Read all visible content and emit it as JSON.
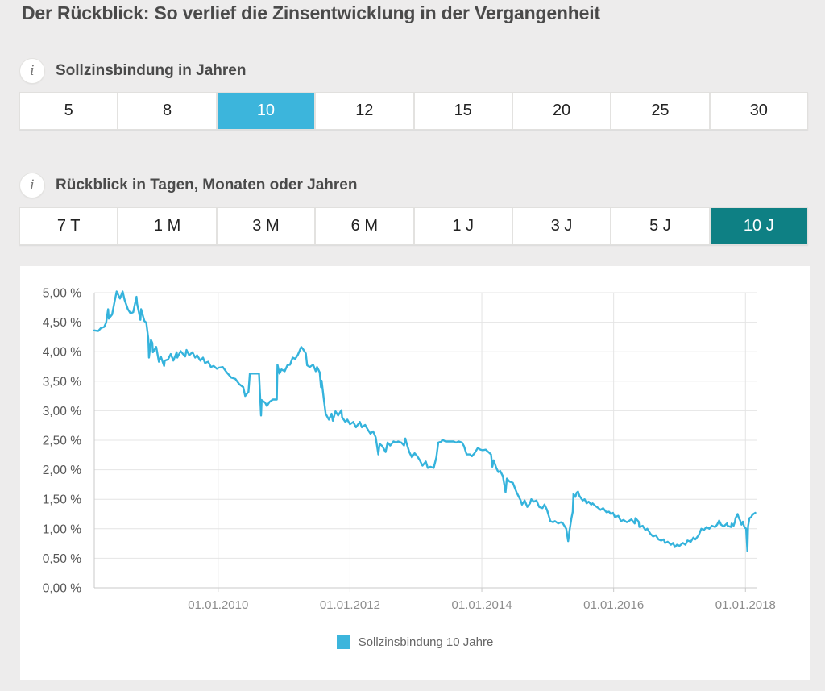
{
  "page": {
    "title": "Der Rückblick: So verlief die Zinsentwicklung in der Vergangenheit"
  },
  "icons": {
    "info": "i"
  },
  "colors": {
    "background": "#edecec",
    "panel": "#ffffff",
    "accent_blue": "#3cb5dc",
    "accent_teal": "#0e8084",
    "line": "#35b3dc",
    "grid": "#e4e4e4",
    "axis": "#c9c9c9",
    "text_dark": "#4a4a4a",
    "y_label": "#575757",
    "x_label": "#8c8c8c"
  },
  "sections": [
    {
      "id": "binding",
      "label": "Sollzinsbindung in Jahren",
      "options": [
        "5",
        "8",
        "10",
        "12",
        "15",
        "20",
        "25",
        "30"
      ],
      "selected": "10",
      "selected_color": "#3cb5dc"
    },
    {
      "id": "lookback",
      "label": "Rückblick in Tagen, Monaten oder Jahren",
      "options": [
        "7 T",
        "1 M",
        "3 M",
        "6 M",
        "1 J",
        "3 J",
        "5 J",
        "10 J"
      ],
      "selected": "10 J",
      "selected_color": "#0e8084"
    }
  ],
  "chart_data": {
    "type": "line",
    "xlim": [
      2008.12,
      2018.18
    ],
    "ylim": [
      0,
      5
    ],
    "grid": true,
    "legend": {
      "label": "Sollzinsbindung 10 Jahre",
      "position": "bottom-center",
      "swatch_color": "#3cb5dc"
    },
    "x_ticks": [
      {
        "t": 2010,
        "label": "01.01.2010"
      },
      {
        "t": 2012,
        "label": "01.01.2012"
      },
      {
        "t": 2014,
        "label": "01.01.2014"
      },
      {
        "t": 2016,
        "label": "01.01.2016"
      },
      {
        "t": 2018,
        "label": "01.01.2018"
      }
    ],
    "y_ticks": [
      {
        "v": 0,
        "label": "0,00 %"
      },
      {
        "v": 0.5,
        "label": "0,50 %"
      },
      {
        "v": 1,
        "label": "1,00 %"
      },
      {
        "v": 1.5,
        "label": "1,50 %"
      },
      {
        "v": 2,
        "label": "2,00 %"
      },
      {
        "v": 2.5,
        "label": "2,50 %"
      },
      {
        "v": 3,
        "label": "3,00 %"
      },
      {
        "v": 3.5,
        "label": "3,50 %"
      },
      {
        "v": 4,
        "label": "4,00 %"
      },
      {
        "v": 4.5,
        "label": "4,50 %"
      },
      {
        "v": 5,
        "label": "5,00 %"
      }
    ],
    "series": [
      {
        "name": "Sollzinsbindung 10 Jahre",
        "color": "#35b3dc",
        "points": [
          [
            2008.12,
            4.36
          ],
          [
            2008.18,
            4.35
          ],
          [
            2008.22,
            4.4
          ],
          [
            2008.27,
            4.42
          ],
          [
            2008.3,
            4.49
          ],
          [
            2008.33,
            4.72
          ],
          [
            2008.34,
            4.56
          ],
          [
            2008.39,
            4.63
          ],
          [
            2008.43,
            4.86
          ],
          [
            2008.46,
            5.02
          ],
          [
            2008.51,
            4.9
          ],
          [
            2008.55,
            5.02
          ],
          [
            2008.58,
            4.88
          ],
          [
            2008.63,
            4.72
          ],
          [
            2008.67,
            4.65
          ],
          [
            2008.71,
            4.67
          ],
          [
            2008.76,
            4.93
          ],
          [
            2008.77,
            4.81
          ],
          [
            2008.82,
            4.54
          ],
          [
            2008.83,
            4.72
          ],
          [
            2008.88,
            4.52
          ],
          [
            2008.91,
            4.49
          ],
          [
            2008.94,
            4.22
          ],
          [
            2008.95,
            3.9
          ],
          [
            2008.98,
            4.2
          ],
          [
            2009.0,
            4.15
          ],
          [
            2009.01,
            3.99
          ],
          [
            2009.06,
            4.08
          ],
          [
            2009.1,
            3.83
          ],
          [
            2009.13,
            3.92
          ],
          [
            2009.18,
            3.76
          ],
          [
            2009.19,
            3.85
          ],
          [
            2009.24,
            3.87
          ],
          [
            2009.28,
            3.96
          ],
          [
            2009.32,
            3.85
          ],
          [
            2009.37,
            3.99
          ],
          [
            2009.38,
            3.9
          ],
          [
            2009.43,
            4.01
          ],
          [
            2009.46,
            3.97
          ],
          [
            2009.5,
            3.92
          ],
          [
            2009.52,
            4.03
          ],
          [
            2009.56,
            3.94
          ],
          [
            2009.61,
            3.99
          ],
          [
            2009.65,
            3.9
          ],
          [
            2009.68,
            3.94
          ],
          [
            2009.73,
            3.85
          ],
          [
            2009.77,
            3.9
          ],
          [
            2009.8,
            3.81
          ],
          [
            2009.85,
            3.83
          ],
          [
            2009.89,
            3.74
          ],
          [
            2009.93,
            3.76
          ],
          [
            2009.98,
            3.71
          ],
          [
            2010.01,
            3.73
          ],
          [
            2010.07,
            3.74
          ],
          [
            2010.13,
            3.65
          ],
          [
            2010.2,
            3.56
          ],
          [
            2010.26,
            3.54
          ],
          [
            2010.32,
            3.45
          ],
          [
            2010.38,
            3.4
          ],
          [
            2010.41,
            3.25
          ],
          [
            2010.46,
            3.32
          ],
          [
            2010.48,
            3.63
          ],
          [
            2010.6,
            3.63
          ],
          [
            2010.62,
            3.63
          ],
          [
            2010.65,
            2.92
          ],
          [
            2010.66,
            3.18
          ],
          [
            2010.71,
            3.14
          ],
          [
            2010.74,
            3.08
          ],
          [
            2010.78,
            3.15
          ],
          [
            2010.83,
            3.19
          ],
          [
            2010.89,
            3.19
          ],
          [
            2010.9,
            3.78
          ],
          [
            2010.93,
            3.63
          ],
          [
            2010.96,
            3.7
          ],
          [
            2011.01,
            3.67
          ],
          [
            2011.05,
            3.77
          ],
          [
            2011.09,
            3.78
          ],
          [
            2011.13,
            3.9
          ],
          [
            2011.17,
            3.88
          ],
          [
            2011.21,
            3.95
          ],
          [
            2011.26,
            4.08
          ],
          [
            2011.29,
            4.04
          ],
          [
            2011.33,
            3.97
          ],
          [
            2011.35,
            3.77
          ],
          [
            2011.39,
            3.74
          ],
          [
            2011.44,
            3.78
          ],
          [
            2011.48,
            3.67
          ],
          [
            2011.5,
            3.74
          ],
          [
            2011.54,
            3.65
          ],
          [
            2011.56,
            3.4
          ],
          [
            2011.57,
            3.51
          ],
          [
            2011.6,
            3.22
          ],
          [
            2011.63,
            2.95
          ],
          [
            2011.68,
            2.85
          ],
          [
            2011.72,
            2.95
          ],
          [
            2011.74,
            2.83
          ],
          [
            2011.78,
            2.99
          ],
          [
            2011.82,
            2.92
          ],
          [
            2011.87,
            3.01
          ],
          [
            2011.88,
            2.89
          ],
          [
            2011.93,
            2.81
          ],
          [
            2011.96,
            2.85
          ],
          [
            2012.0,
            2.77
          ],
          [
            2012.05,
            2.81
          ],
          [
            2012.09,
            2.72
          ],
          [
            2012.15,
            2.81
          ],
          [
            2012.18,
            2.72
          ],
          [
            2012.23,
            2.76
          ],
          [
            2012.27,
            2.68
          ],
          [
            2012.31,
            2.61
          ],
          [
            2012.35,
            2.65
          ],
          [
            2012.39,
            2.55
          ],
          [
            2012.43,
            2.26
          ],
          [
            2012.45,
            2.44
          ],
          [
            2012.49,
            2.4
          ],
          [
            2012.54,
            2.3
          ],
          [
            2012.57,
            2.46
          ],
          [
            2012.61,
            2.41
          ],
          [
            2012.66,
            2.48
          ],
          [
            2012.7,
            2.46
          ],
          [
            2012.73,
            2.48
          ],
          [
            2012.78,
            2.46
          ],
          [
            2012.82,
            2.41
          ],
          [
            2012.84,
            2.53
          ],
          [
            2012.85,
            2.48
          ],
          [
            2012.9,
            2.3
          ],
          [
            2012.94,
            2.21
          ],
          [
            2012.98,
            2.28
          ],
          [
            2013.02,
            2.23
          ],
          [
            2013.06,
            2.16
          ],
          [
            2013.1,
            2.07
          ],
          [
            2013.15,
            2.14
          ],
          [
            2013.18,
            2.03
          ],
          [
            2013.22,
            2.05
          ],
          [
            2013.27,
            2.03
          ],
          [
            2013.31,
            2.21
          ],
          [
            2013.34,
            2.46
          ],
          [
            2013.39,
            2.48
          ],
          [
            2013.4,
            2.51
          ],
          [
            2013.45,
            2.48
          ],
          [
            2013.53,
            2.48
          ],
          [
            2013.57,
            2.48
          ],
          [
            2013.61,
            2.46
          ],
          [
            2013.65,
            2.48
          ],
          [
            2013.7,
            2.46
          ],
          [
            2013.73,
            2.4
          ],
          [
            2013.77,
            2.26
          ],
          [
            2013.82,
            2.26
          ],
          [
            2013.85,
            2.23
          ],
          [
            2013.89,
            2.28
          ],
          [
            2013.94,
            2.37
          ],
          [
            2013.98,
            2.34
          ],
          [
            2014.01,
            2.33
          ],
          [
            2014.06,
            2.34
          ],
          [
            2014.1,
            2.3
          ],
          [
            2014.14,
            2.26
          ],
          [
            2014.16,
            2.05
          ],
          [
            2014.18,
            2.16
          ],
          [
            2014.22,
            2.03
          ],
          [
            2014.25,
            1.96
          ],
          [
            2014.28,
            1.98
          ],
          [
            2014.32,
            1.89
          ],
          [
            2014.36,
            1.62
          ],
          [
            2014.38,
            1.85
          ],
          [
            2014.42,
            1.8
          ],
          [
            2014.47,
            1.78
          ],
          [
            2014.53,
            1.61
          ],
          [
            2014.59,
            1.48
          ],
          [
            2014.61,
            1.41
          ],
          [
            2014.65,
            1.48
          ],
          [
            2014.69,
            1.37
          ],
          [
            2014.73,
            1.43
          ],
          [
            2014.75,
            1.5
          ],
          [
            2014.79,
            1.46
          ],
          [
            2014.83,
            1.48
          ],
          [
            2014.87,
            1.37
          ],
          [
            2014.92,
            1.35
          ],
          [
            2014.95,
            1.41
          ],
          [
            2014.99,
            1.32
          ],
          [
            2015.04,
            1.13
          ],
          [
            2015.08,
            1.11
          ],
          [
            2015.11,
            1.13
          ],
          [
            2015.16,
            1.09
          ],
          [
            2015.2,
            1.11
          ],
          [
            2015.23,
            1.09
          ],
          [
            2015.28,
            1.0
          ],
          [
            2015.31,
            0.79
          ],
          [
            2015.33,
            0.96
          ],
          [
            2015.36,
            1.18
          ],
          [
            2015.38,
            1.29
          ],
          [
            2015.39,
            1.59
          ],
          [
            2015.42,
            1.54
          ],
          [
            2015.44,
            1.61
          ],
          [
            2015.46,
            1.63
          ],
          [
            2015.48,
            1.56
          ],
          [
            2015.53,
            1.48
          ],
          [
            2015.56,
            1.5
          ],
          [
            2015.59,
            1.43
          ],
          [
            2015.62,
            1.46
          ],
          [
            2015.66,
            1.41
          ],
          [
            2015.68,
            1.43
          ],
          [
            2015.72,
            1.39
          ],
          [
            2015.77,
            1.35
          ],
          [
            2015.8,
            1.32
          ],
          [
            2015.84,
            1.35
          ],
          [
            2015.89,
            1.28
          ],
          [
            2015.93,
            1.29
          ],
          [
            2015.96,
            1.25
          ],
          [
            2015.99,
            1.27
          ],
          [
            2016.02,
            1.2
          ],
          [
            2016.07,
            1.22
          ],
          [
            2016.11,
            1.13
          ],
          [
            2016.15,
            1.15
          ],
          [
            2016.2,
            1.11
          ],
          [
            2016.23,
            1.13
          ],
          [
            2016.27,
            1.16
          ],
          [
            2016.32,
            1.09
          ],
          [
            2016.33,
            1.18
          ],
          [
            2016.38,
            1.12
          ],
          [
            2016.39,
            1.03
          ],
          [
            2016.44,
            1.05
          ],
          [
            2016.48,
            0.98
          ],
          [
            2016.51,
            1.0
          ],
          [
            2016.56,
            0.91
          ],
          [
            2016.6,
            0.87
          ],
          [
            2016.64,
            0.89
          ],
          [
            2016.68,
            0.82
          ],
          [
            2016.72,
            0.8
          ],
          [
            2016.76,
            0.82
          ],
          [
            2016.78,
            0.76
          ],
          [
            2016.82,
            0.78
          ],
          [
            2016.87,
            0.73
          ],
          [
            2016.9,
            0.76
          ],
          [
            2016.93,
            0.69
          ],
          [
            2016.96,
            0.73
          ],
          [
            2017.0,
            0.71
          ],
          [
            2017.05,
            0.76
          ],
          [
            2017.09,
            0.73
          ],
          [
            2017.12,
            0.8
          ],
          [
            2017.17,
            0.78
          ],
          [
            2017.21,
            0.85
          ],
          [
            2017.24,
            0.82
          ],
          [
            2017.29,
            0.89
          ],
          [
            2017.33,
            1.0
          ],
          [
            2017.37,
            0.98
          ],
          [
            2017.41,
            1.03
          ],
          [
            2017.45,
            1.0
          ],
          [
            2017.49,
            1.05
          ],
          [
            2017.54,
            1.03
          ],
          [
            2017.57,
            1.07
          ],
          [
            2017.6,
            1.14
          ],
          [
            2017.63,
            1.07
          ],
          [
            2017.67,
            1.04
          ],
          [
            2017.72,
            1.09
          ],
          [
            2017.73,
            1.05
          ],
          [
            2017.78,
            1.03
          ],
          [
            2017.79,
            1.09
          ],
          [
            2017.82,
            1.05
          ],
          [
            2017.84,
            1.12
          ],
          [
            2017.85,
            1.18
          ],
          [
            2017.88,
            1.25
          ],
          [
            2017.9,
            1.18
          ],
          [
            2017.92,
            1.14
          ],
          [
            2017.94,
            1.07
          ],
          [
            2017.96,
            1.12
          ],
          [
            2017.98,
            1.04
          ],
          [
            2017.99,
            1.02
          ],
          [
            2018.01,
            1.0
          ],
          [
            2018.03,
            0.62
          ],
          [
            2018.04,
            1.04
          ],
          [
            2018.06,
            1.18
          ],
          [
            2018.09,
            1.2
          ],
          [
            2018.1,
            1.23
          ],
          [
            2018.12,
            1.25
          ],
          [
            2018.15,
            1.27
          ]
        ]
      }
    ]
  }
}
